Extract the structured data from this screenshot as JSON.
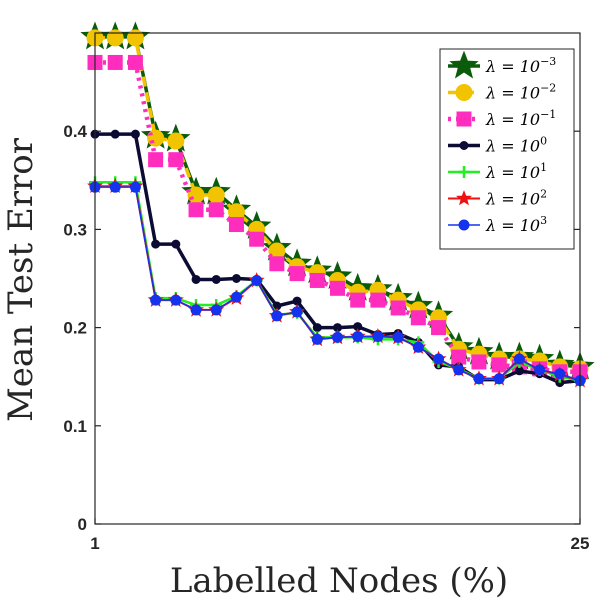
{
  "chart_data": {
    "type": "line",
    "title": "",
    "xlabel": "Labelled Nodes (%)",
    "ylabel": "Mean Test Error",
    "xlim": [
      1,
      25
    ],
    "ylim": [
      0,
      0.5
    ],
    "xticks": [
      "1",
      "25"
    ],
    "yticks": [
      "0",
      "0.1",
      "0.2",
      "0.3",
      "0.4"
    ],
    "grid": false,
    "legend_position": "top-right",
    "x": [
      1,
      2,
      3,
      4,
      5,
      6,
      7,
      8,
      9,
      10,
      11,
      12,
      13,
      14,
      15,
      16,
      17,
      18,
      19,
      20,
      21,
      22,
      23,
      24,
      25
    ],
    "series": [
      {
        "name": "λ = 10^-3",
        "legend_base": "λ = 10",
        "legend_exp": "−3",
        "color": "#0a5c0a",
        "marker": "star",
        "dash": "solid",
        "values": [
          0.496,
          0.496,
          0.496,
          0.395,
          0.392,
          0.338,
          0.338,
          0.32,
          0.303,
          0.281,
          0.265,
          0.258,
          0.252,
          0.24,
          0.239,
          0.23,
          0.222,
          0.212,
          0.18,
          0.175,
          0.17,
          0.17,
          0.168,
          0.162,
          0.16
        ]
      },
      {
        "name": "λ = 10^-2",
        "legend_base": "λ = 10",
        "legend_exp": "−2",
        "color": "#f2c300",
        "marker": "circle",
        "dash": "dashed",
        "values": [
          0.495,
          0.495,
          0.495,
          0.393,
          0.39,
          0.335,
          0.335,
          0.318,
          0.3,
          0.278,
          0.262,
          0.256,
          0.248,
          0.236,
          0.238,
          0.228,
          0.218,
          0.21,
          0.178,
          0.173,
          0.168,
          0.168,
          0.166,
          0.16,
          0.158
        ]
      },
      {
        "name": "λ = 10^-1",
        "legend_base": "λ = 10",
        "legend_exp": "−1",
        "color": "#ff2dbe",
        "marker": "square",
        "dash": "dotted",
        "values": [
          0.47,
          0.47,
          0.47,
          0.371,
          0.371,
          0.32,
          0.32,
          0.305,
          0.29,
          0.265,
          0.255,
          0.248,
          0.24,
          0.228,
          0.228,
          0.22,
          0.21,
          0.2,
          0.17,
          0.165,
          0.162,
          0.16,
          0.158,
          0.155,
          0.155
        ]
      },
      {
        "name": "λ = 10^0",
        "legend_base": "λ = 10",
        "legend_exp": "0",
        "color": "#0b0b33",
        "marker": "smallcircle",
        "dash": "solid",
        "values": [
          0.397,
          0.397,
          0.397,
          0.285,
          0.285,
          0.249,
          0.249,
          0.25,
          0.249,
          0.222,
          0.227,
          0.2,
          0.2,
          0.201,
          0.193,
          0.194,
          0.185,
          0.162,
          0.16,
          0.147,
          0.147,
          0.156,
          0.153,
          0.144,
          0.146
        ]
      },
      {
        "name": "λ = 10^1",
        "legend_base": "λ = 10",
        "legend_exp": "1",
        "color": "#22ee22",
        "marker": "plus",
        "dash": "solid",
        "values": [
          0.348,
          0.348,
          0.348,
          0.23,
          0.23,
          0.223,
          0.223,
          0.232,
          0.248,
          0.213,
          0.215,
          0.19,
          0.19,
          0.19,
          0.188,
          0.188,
          0.185,
          0.165,
          0.158,
          0.148,
          0.148,
          0.165,
          0.157,
          0.15,
          0.146
        ]
      },
      {
        "name": "λ = 10^2",
        "legend_base": "λ = 10",
        "legend_exp": "2",
        "color": "#ee1111",
        "marker": "smallstar",
        "dash": "solid",
        "values": [
          0.344,
          0.344,
          0.344,
          0.228,
          0.228,
          0.218,
          0.218,
          0.23,
          0.248,
          0.212,
          0.216,
          0.188,
          0.19,
          0.191,
          0.191,
          0.19,
          0.18,
          0.168,
          0.157,
          0.148,
          0.148,
          0.168,
          0.157,
          0.152,
          0.146
        ]
      },
      {
        "name": "λ = 10^3",
        "legend_base": "λ = 10",
        "legend_exp": "3",
        "color": "#1533ee",
        "marker": "circle",
        "dash": "solid",
        "values": [
          0.343,
          0.343,
          0.343,
          0.228,
          0.228,
          0.218,
          0.218,
          0.231,
          0.248,
          0.212,
          0.216,
          0.188,
          0.19,
          0.191,
          0.191,
          0.19,
          0.18,
          0.168,
          0.157,
          0.148,
          0.148,
          0.168,
          0.157,
          0.153,
          0.146
        ]
      }
    ]
  }
}
